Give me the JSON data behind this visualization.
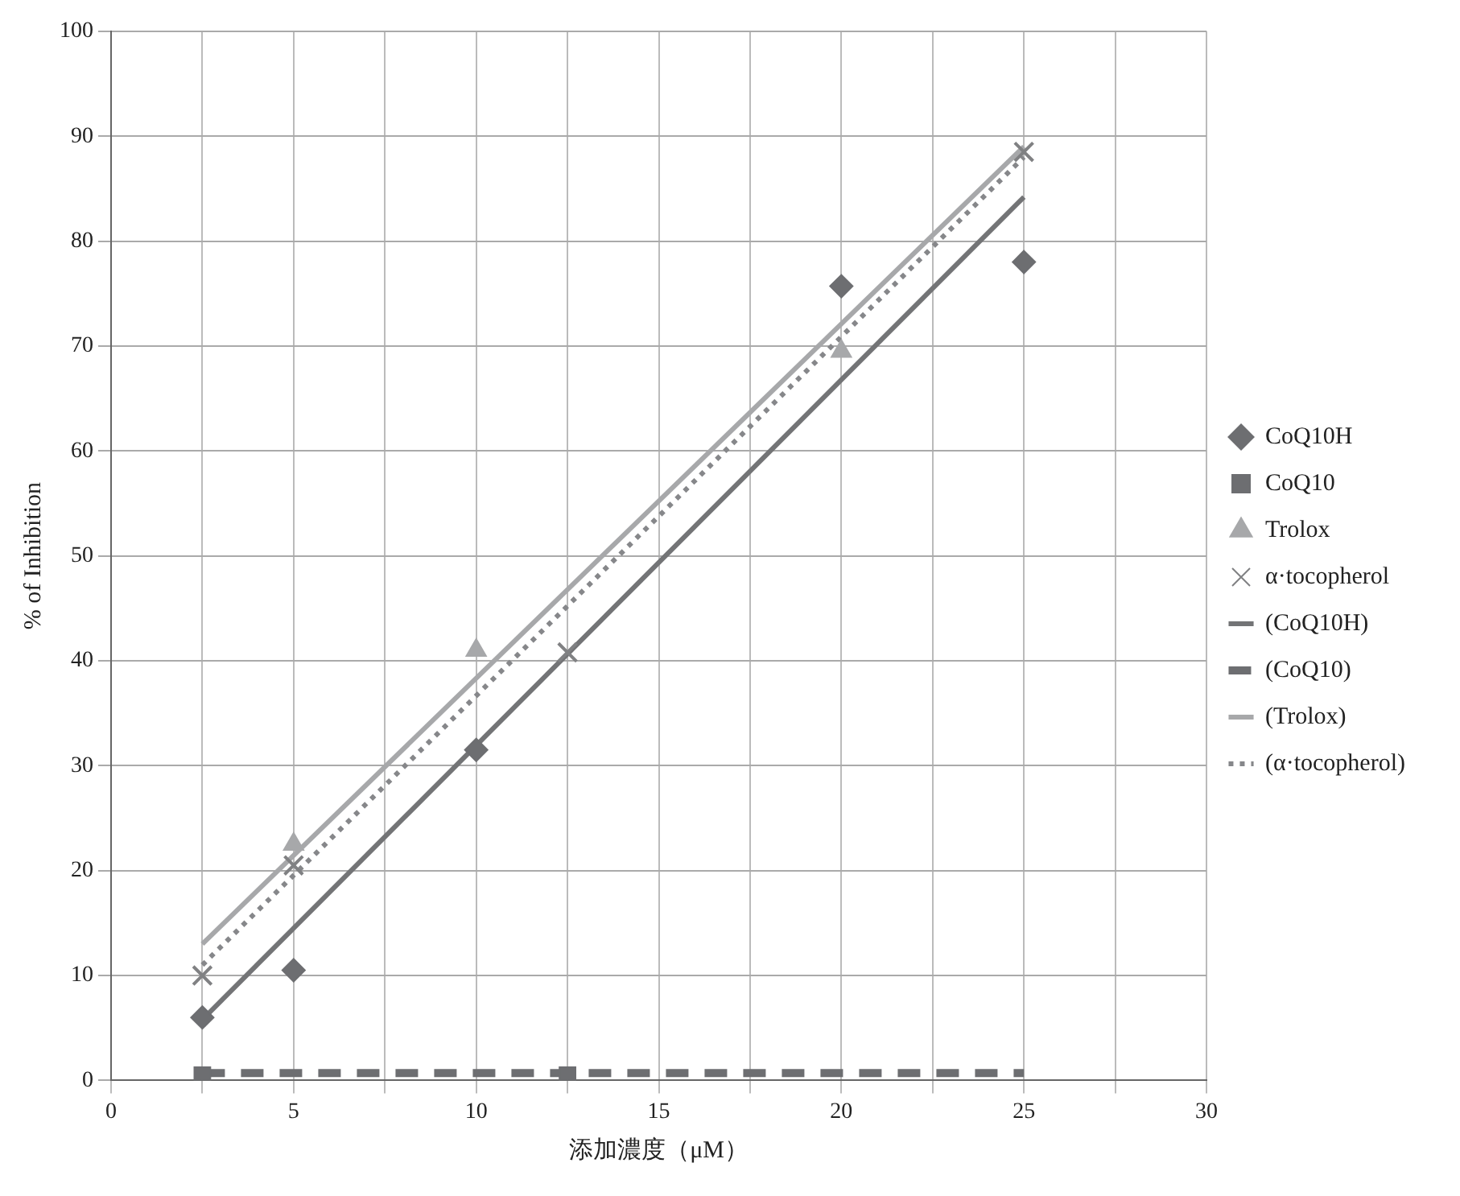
{
  "chart_data": {
    "type": "scatter",
    "xlabel": "添加濃度（μM）",
    "ylabel": "% of Inhibition",
    "xlim": [
      0,
      30
    ],
    "xticks": [
      0,
      {
        "value": 2.5,
        "label": null
      },
      5,
      {
        "value": 7.5,
        "label": null
      },
      10,
      {
        "value": 12.5,
        "label": null
      },
      15,
      {
        "value": 17.5,
        "label": null
      },
      20,
      {
        "value": 22.5,
        "label": null
      },
      25,
      {
        "value": 27.5,
        "label": null
      },
      30
    ],
    "ylim": [
      0,
      100
    ],
    "yticks": [
      0,
      10,
      20,
      30,
      40,
      50,
      60,
      70,
      80,
      90,
      100
    ],
    "grid": true,
    "legend": "right",
    "series": [
      {
        "name": "CoQ10H",
        "marker": "diamond",
        "color": "#6d6e71",
        "x": [
          2.5,
          5,
          10,
          20,
          25
        ],
        "values": [
          6,
          10.5,
          31.5,
          75.7,
          78
        ]
      },
      {
        "name": "CoQ10",
        "marker": "square",
        "color": "#6d6e71",
        "x": [
          2.5,
          12.5
        ],
        "values": [
          0.5,
          0.5
        ]
      },
      {
        "name": "Trolox",
        "marker": "triangle",
        "color": "#a7a8aa",
        "x": [
          5,
          10,
          20
        ],
        "values": [
          22.5,
          41,
          69.5
        ]
      },
      {
        "name": "α·tocopherol",
        "marker": "cross",
        "color": "#808183",
        "x": [
          2.5,
          5,
          12.5,
          25
        ],
        "values": [
          10,
          20.5,
          40.8,
          88.5
        ]
      },
      {
        "name": "(CoQ10H)",
        "type": "line",
        "marker": "none",
        "line_style": "solid",
        "color": "#737476",
        "x": [
          2.5,
          25
        ],
        "values": [
          5.8,
          84.2
        ]
      },
      {
        "name": "(CoQ10)",
        "type": "line",
        "marker": "none",
        "line_style": "dashed",
        "color": "#6d6e71",
        "x": [
          2.5,
          25
        ],
        "values": [
          0.7,
          0.7
        ]
      },
      {
        "name": "(Trolox)",
        "type": "line",
        "marker": "none",
        "line_style": "solid",
        "color": "#a7a8aa",
        "x": [
          2.5,
          25
        ],
        "values": [
          13,
          89
        ]
      },
      {
        "name": "(α·tocopherol)",
        "type": "line",
        "marker": "none",
        "line_style": "dotted",
        "color": "#86878a",
        "x": [
          2.5,
          25
        ],
        "values": [
          11,
          88
        ]
      }
    ]
  }
}
